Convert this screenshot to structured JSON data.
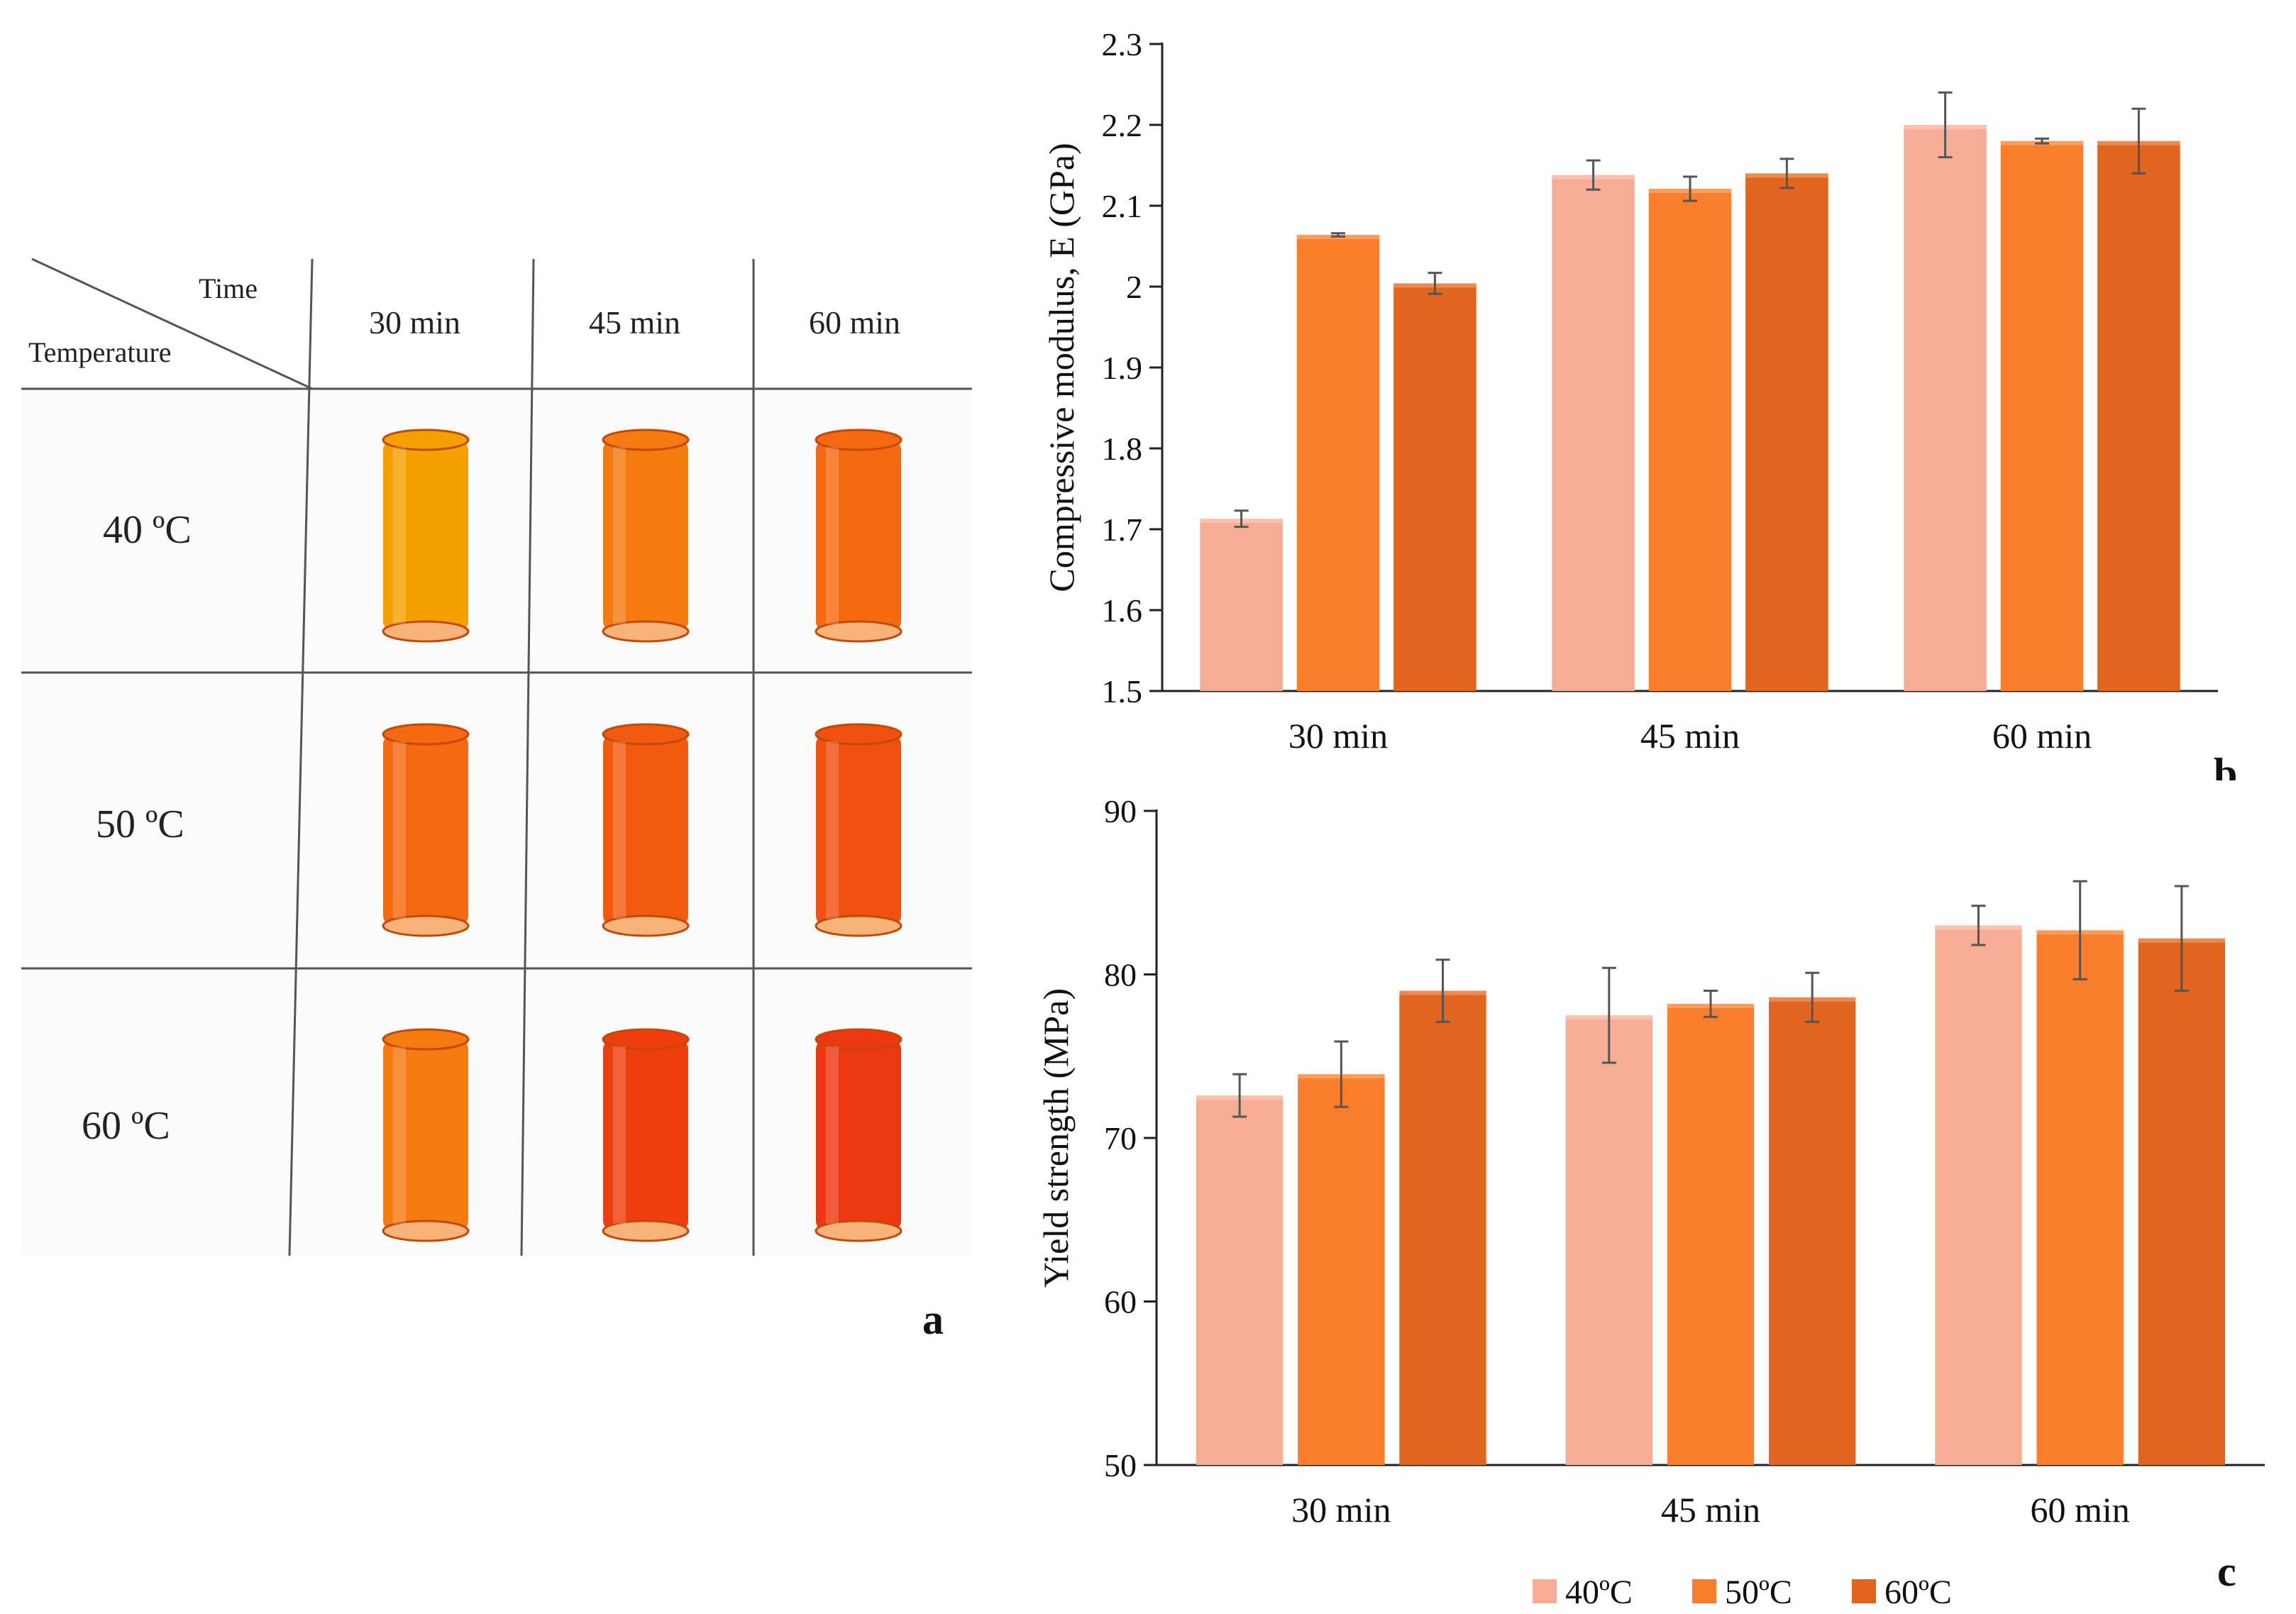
{
  "panel_a": {
    "header_time": "Time",
    "header_temperature": "Temperature",
    "columns": [
      "30 min",
      "45 min",
      "60 min"
    ],
    "rows": [
      "40 ºC",
      "50 ºC",
      "60 ºC"
    ],
    "sample_colors": [
      [
        "#f5a000",
        "#f57a10",
        "#f56a10"
      ],
      [
        "#f56a10",
        "#f25a10",
        "#f05010"
      ],
      [
        "#f57a10",
        "#ee3e10",
        "#ec3810"
      ]
    ],
    "letter": "a"
  },
  "chart_data": [
    {
      "type": "bar",
      "title": "",
      "categories": [
        "30 min",
        "45 min",
        "60 min"
      ],
      "series": [
        {
          "name": "40ºC",
          "values": [
            1.713,
            2.138,
            2.2
          ],
          "errors": [
            0.01,
            0.018,
            0.04
          ],
          "color": "#f7ad95"
        },
        {
          "name": "50ºC",
          "values": [
            2.064,
            2.121,
            2.18
          ],
          "errors": [
            0.002,
            0.015,
            0.003
          ],
          "color": "#f97d2a"
        },
        {
          "name": "60ºC",
          "values": [
            2.004,
            2.14,
            2.18
          ],
          "errors": [
            0.013,
            0.018,
            0.04
          ],
          "color": "#e2651f"
        }
      ],
      "xlabel": "",
      "ylabel": "Compressive  modulus,  E (GPa)",
      "ylim": [
        1.5,
        2.3
      ],
      "yticks": [
        "1.5",
        "1.6",
        "1.7",
        "1.8",
        "1.9",
        "2",
        "2.1",
        "2.2",
        "2.3"
      ],
      "legend": "bottom",
      "letter": "b"
    },
    {
      "type": "bar",
      "title": "",
      "categories": [
        "30 min",
        "45 min",
        "60 min"
      ],
      "series": [
        {
          "name": "40ºC",
          "values": [
            72.6,
            77.5,
            83.0
          ],
          "errors": [
            1.3,
            2.9,
            1.2
          ],
          "color": "#f7ad95"
        },
        {
          "name": "50ºC",
          "values": [
            73.9,
            78.2,
            82.7
          ],
          "errors": [
            2.0,
            0.8,
            3.0
          ],
          "color": "#f97d2a"
        },
        {
          "name": "60ºC",
          "values": [
            79.0,
            78.6,
            82.2
          ],
          "errors": [
            1.9,
            1.5,
            3.2
          ],
          "color": "#e2651f"
        }
      ],
      "xlabel": "",
      "ylabel": "Yield strength  (MPa)",
      "ylim": [
        50,
        90
      ],
      "yticks": [
        "50",
        "60",
        "70",
        "80",
        "90"
      ],
      "legend": "bottom",
      "letter": "c"
    }
  ]
}
